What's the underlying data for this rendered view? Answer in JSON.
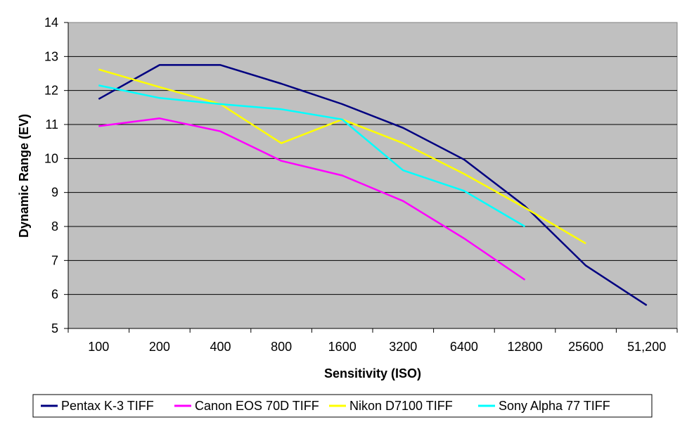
{
  "chart_data": {
    "type": "line",
    "title": "",
    "xlabel": "Sensitivity (ISO)",
    "ylabel": "Dynamic Range (EV)",
    "categories": [
      "100",
      "200",
      "400",
      "800",
      "1600",
      "3200",
      "6400",
      "12800",
      "25600",
      "51,200"
    ],
    "ylim": [
      5,
      14
    ],
    "yticks": [
      5,
      6,
      7,
      8,
      9,
      10,
      11,
      12,
      13,
      14
    ],
    "grid": "horizontal",
    "legend_position": "bottom",
    "plot_background": "#c0c0c0",
    "series": [
      {
        "name": "Pentax K-3 TIFF",
        "color": "#000080",
        "values": [
          11.75,
          12.75,
          12.75,
          12.2,
          11.6,
          10.9,
          9.97,
          8.6,
          6.85,
          5.68
        ]
      },
      {
        "name": "Canon EOS 70D TIFF",
        "color": "#ff00ff",
        "values": [
          10.95,
          11.18,
          10.8,
          9.93,
          9.5,
          8.75,
          7.65,
          6.43,
          null,
          null
        ]
      },
      {
        "name": "Nikon D7100 TIFF",
        "color": "#ffff00",
        "values": [
          12.62,
          12.1,
          11.6,
          10.45,
          11.15,
          10.45,
          9.55,
          8.55,
          7.5,
          null
        ]
      },
      {
        "name": "Sony Alpha 77 TIFF",
        "color": "#00ffff",
        "values": [
          12.15,
          11.78,
          11.6,
          11.45,
          11.15,
          9.65,
          9.05,
          8.0,
          null,
          null
        ]
      }
    ]
  }
}
